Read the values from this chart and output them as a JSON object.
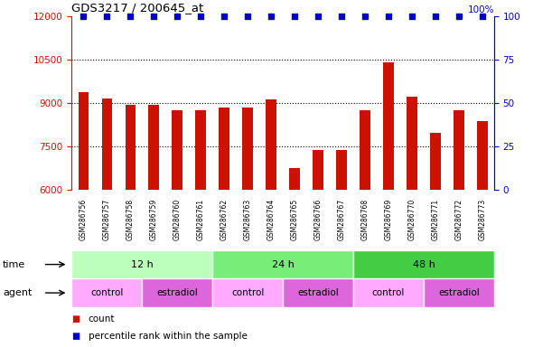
{
  "title": "GDS3217 / 200645_at",
  "samples": [
    "GSM286756",
    "GSM286757",
    "GSM286758",
    "GSM286759",
    "GSM286760",
    "GSM286761",
    "GSM286762",
    "GSM286763",
    "GSM286764",
    "GSM286765",
    "GSM286766",
    "GSM286767",
    "GSM286768",
    "GSM286769",
    "GSM286770",
    "GSM286771",
    "GSM286772",
    "GSM286773"
  ],
  "counts": [
    9350,
    9150,
    8920,
    8920,
    8750,
    8750,
    8820,
    8820,
    9100,
    6750,
    7380,
    7350,
    8750,
    10400,
    9200,
    7950,
    8750,
    8350
  ],
  "bar_color": "#cc1100",
  "dot_color": "#0000cc",
  "ylim_left": [
    6000,
    12000
  ],
  "ylim_right": [
    0,
    100
  ],
  "yticks_left": [
    6000,
    7500,
    9000,
    10500,
    12000
  ],
  "yticks_right": [
    0,
    25,
    50,
    75,
    100
  ],
  "grid_vals": [
    7500,
    9000,
    10500
  ],
  "left_axis_color": "#cc1100",
  "right_axis_color": "#0000cc",
  "time_groups": [
    {
      "label": "12 h",
      "start": 0,
      "end": 5,
      "color": "#bbffbb"
    },
    {
      "label": "24 h",
      "start": 6,
      "end": 11,
      "color": "#77ee77"
    },
    {
      "label": "48 h",
      "start": 12,
      "end": 17,
      "color": "#44cc44"
    }
  ],
  "agent_groups": [
    {
      "label": "control",
      "start": 0,
      "end": 2,
      "color": "#ffaaff"
    },
    {
      "label": "estradiol",
      "start": 3,
      "end": 5,
      "color": "#dd66dd"
    },
    {
      "label": "control",
      "start": 6,
      "end": 8,
      "color": "#ffaaff"
    },
    {
      "label": "estradiol",
      "start": 9,
      "end": 11,
      "color": "#dd66dd"
    },
    {
      "label": "control",
      "start": 12,
      "end": 14,
      "color": "#ffaaff"
    },
    {
      "label": "estradiol",
      "start": 15,
      "end": 17,
      "color": "#dd66dd"
    }
  ],
  "bg_label_color": "#dddddd",
  "time_label": "time",
  "agent_label": "agent",
  "legend_count_label": "count",
  "legend_pct_label": "percentile rank within the sample"
}
